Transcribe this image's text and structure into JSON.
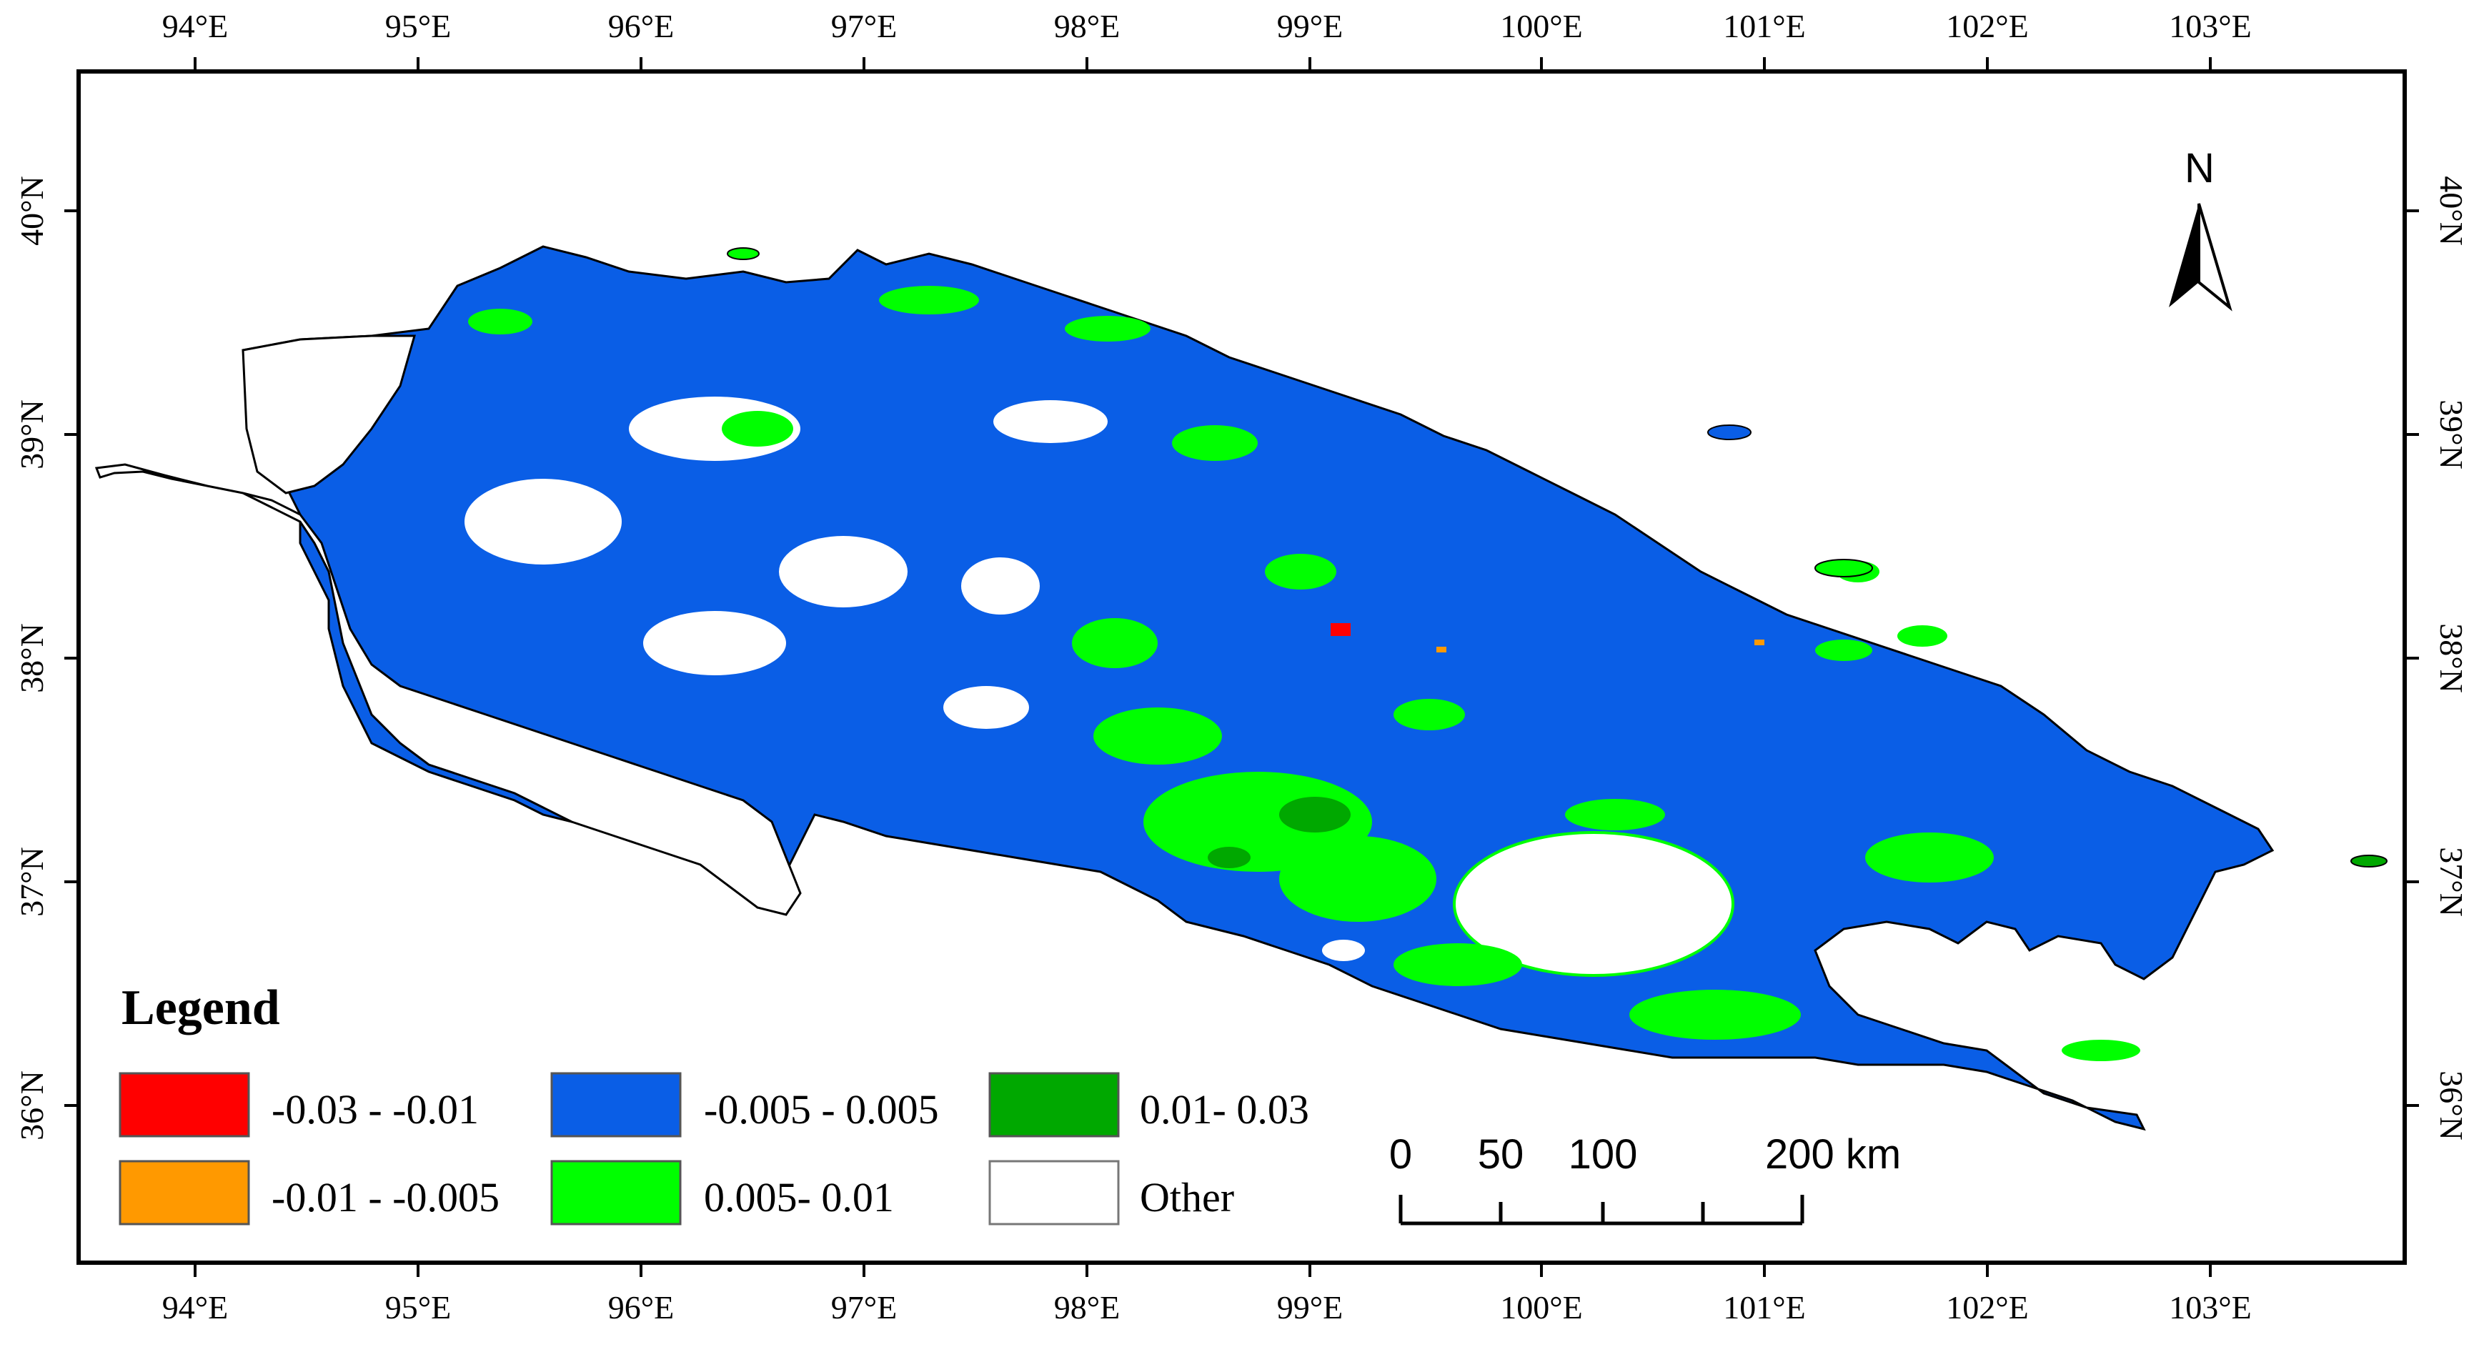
{
  "map": {
    "lon_labels": [
      "94°E",
      "95°E",
      "96°E",
      "97°E",
      "98°E",
      "99°E",
      "100°E",
      "101°E",
      "102°E",
      "103°E"
    ],
    "lat_labels": [
      "40°N",
      "39°N",
      "38°N",
      "37°N",
      "36°N"
    ],
    "legend": {
      "title": "Legend",
      "items": [
        {
          "label": "-0.03 - -0.01",
          "color": "#ff0000"
        },
        {
          "label": "-0.01 - -0.005",
          "color": "#ff9900"
        },
        {
          "label": "-0.005 - 0.005",
          "color": "#0a5ee6"
        },
        {
          "label": "0.005- 0.01",
          "color": "#00ff00"
        },
        {
          "label": "0.01- 0.03",
          "color": "#00a800"
        },
        {
          "label": "Other",
          "color": "#ffffff"
        }
      ]
    },
    "scale_bar": {
      "labels": [
        "0",
        "50",
        "100",
        "200 km"
      ]
    },
    "north_arrow": {
      "label": "N"
    },
    "colors": {
      "frame": "#000000",
      "outline": "#000000",
      "other": "#ffffff",
      "decrease_strong": "#ff0000",
      "decrease_weak": "#ff9900",
      "stable": "#0a5ee6",
      "increase_weak": "#00ff00",
      "increase_strong": "#00a800"
    }
  }
}
